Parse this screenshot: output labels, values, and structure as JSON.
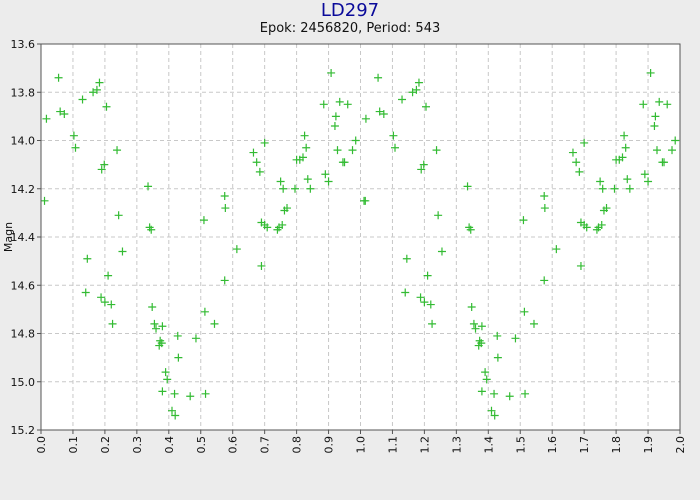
{
  "chart_data": {
    "type": "scatter",
    "title": "LD297",
    "subtitle": "Epok: 2456820, Period: 543",
    "xlabel": "",
    "ylabel": "Magn",
    "xlim": [
      0.0,
      2.0
    ],
    "ylim": [
      15.2,
      13.6
    ],
    "y_inverted": true,
    "grid": true,
    "xticks": [
      "0.0",
      "0.1",
      "0.2",
      "0.3",
      "0.4",
      "0.5",
      "0.6",
      "0.7",
      "0.8",
      "0.9",
      "1.0",
      "1.1",
      "1.2",
      "1.3",
      "1.4",
      "1.5",
      "1.6",
      "1.7",
      "1.8",
      "1.9",
      "2.0"
    ],
    "yticks": [
      "13.6",
      "13.8",
      "14.0",
      "14.2",
      "14.4",
      "14.6",
      "14.8",
      "15.0",
      "15.2"
    ],
    "marker": "+",
    "marker_color": "#33bb33",
    "phase_repeat": 1.0,
    "x": [
      0.011,
      0.017,
      0.055,
      0.06,
      0.073,
      0.103,
      0.108,
      0.13,
      0.14,
      0.145,
      0.163,
      0.175,
      0.183,
      0.188,
      0.19,
      0.198,
      0.2,
      0.205,
      0.21,
      0.22,
      0.224,
      0.238,
      0.243,
      0.255,
      0.335,
      0.34,
      0.345,
      0.348,
      0.355,
      0.36,
      0.37,
      0.373,
      0.378,
      0.38,
      0.38,
      0.39,
      0.395,
      0.41,
      0.418,
      0.42,
      0.428,
      0.43,
      0.467,
      0.485,
      0.51,
      0.513,
      0.515,
      0.543,
      0.575,
      0.575,
      0.577,
      0.613,
      0.665,
      0.675,
      0.685,
      0.69,
      0.69,
      0.7,
      0.7,
      0.708,
      0.74,
      0.745,
      0.75,
      0.755,
      0.758,
      0.762,
      0.77,
      0.795,
      0.8,
      0.81,
      0.82,
      0.825,
      0.83,
      0.835,
      0.843,
      0.885,
      0.89,
      0.9,
      0.908,
      0.92,
      0.923,
      0.928,
      0.935,
      0.945,
      0.95,
      0.96,
      0.975,
      0.985,
      1.015
    ],
    "y": [
      14.25,
      13.91,
      13.74,
      13.88,
      13.89,
      13.98,
      14.03,
      13.83,
      14.63,
      14.49,
      13.8,
      13.79,
      13.76,
      14.65,
      14.12,
      14.1,
      14.67,
      13.86,
      14.56,
      14.68,
      14.76,
      14.04,
      14.31,
      14.46,
      14.19,
      14.36,
      14.37,
      14.69,
      14.76,
      14.78,
      14.85,
      14.83,
      14.84,
      14.77,
      15.04,
      14.96,
      14.99,
      15.12,
      15.05,
      15.14,
      14.81,
      14.9,
      15.06,
      14.82,
      14.33,
      14.71,
      15.05,
      14.76,
      14.58,
      14.23,
      14.28,
      14.45,
      14.05,
      14.09,
      14.13,
      14.34,
      14.52,
      14.35,
      14.01,
      14.36,
      14.37,
      14.36,
      14.17,
      14.35,
      14.2,
      14.29,
      14.28,
      14.2,
      14.08,
      14.08,
      14.07,
      13.98,
      14.03,
      14.16,
      14.2,
      13.85,
      14.14,
      14.17,
      13.72,
      13.94,
      13.9,
      14.04,
      13.84,
      14.09,
      14.09,
      13.85,
      14.04,
      14.0,
      14.25
    ]
  }
}
